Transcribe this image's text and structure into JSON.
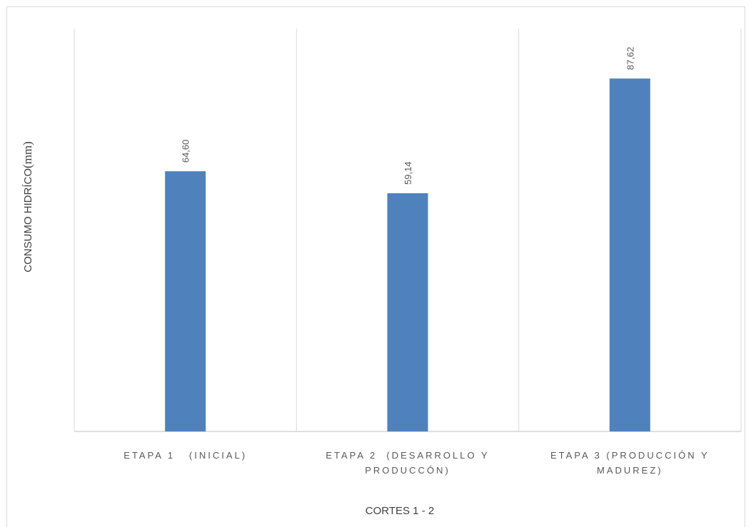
{
  "chart_data": {
    "type": "bar",
    "categories": [
      [
        "ETAPA 1   (INICIAL)"
      ],
      [
        "ETAPA 2  (DESARROLLO Y",
        "PRODUCCÓN)"
      ],
      [
        "ETAPA 3 (PRODUCCIÓN Y",
        "MADUREZ)"
      ]
    ],
    "values": [
      64.6,
      59.14,
      87.62
    ],
    "data_labels": [
      "64,60",
      "59,14",
      "87,62"
    ],
    "xlabel": "CORTES 1 - 2",
    "ylabel_main": "CONSUMO HIDRÍCO",
    "ylabel_unit": "(mm)",
    "ylim": [
      0,
      100
    ],
    "bar_color": "#4f81bd",
    "grid": "vertical category separators",
    "legend": "none"
  }
}
